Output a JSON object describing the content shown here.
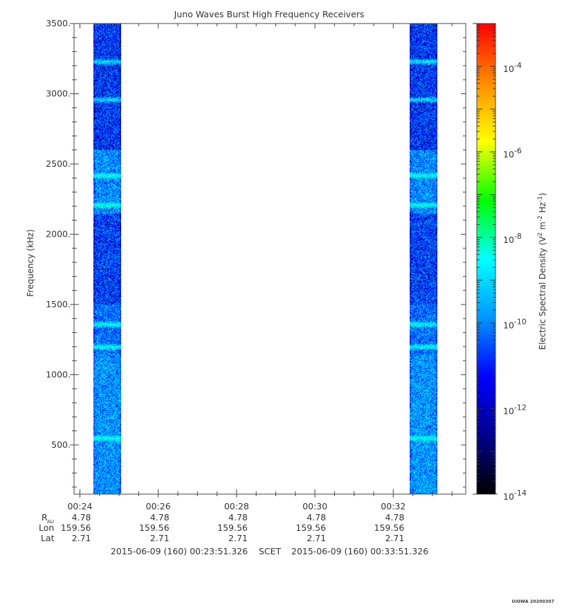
{
  "chart_data": {
    "type": "heatmap",
    "title": "Juno Waves Burst High Frequency Receivers",
    "ylabel": "Frequency (kHz)",
    "ylim": [
      150,
      3500
    ],
    "yticks": [
      {
        "value": 500,
        "label": "500."
      },
      {
        "value": 1000,
        "label": "1000."
      },
      {
        "value": 1500,
        "label": "1500."
      },
      {
        "value": 2000,
        "label": "2000."
      },
      {
        "value": 2500,
        "label": "2500."
      },
      {
        "value": 3000,
        "label": "3000."
      },
      {
        "value": 3500,
        "label": "3500."
      }
    ],
    "xlim_minutes": [
      23.85,
      33.85
    ],
    "xticks": [
      {
        "value": 24,
        "label": "00:24"
      },
      {
        "value": 26,
        "label": "00:26"
      },
      {
        "value": 28,
        "label": "00:28"
      },
      {
        "value": 30,
        "label": "00:30"
      },
      {
        "value": 32,
        "label": "00:32"
      }
    ],
    "ephemeris": {
      "labels": [
        "R",
        "Lon",
        "Lat"
      ],
      "r_subscript": "AU",
      "columns": [
        {
          "r": "4.78",
          "lon": "159.56",
          "lat": "2.71"
        },
        {
          "r": "4.78",
          "lon": "159.56",
          "lat": "2.71"
        },
        {
          "r": "4.78",
          "lon": "159.56",
          "lat": "2.71"
        },
        {
          "r": "4.78",
          "lon": "159.56",
          "lat": "2.71"
        },
        {
          "r": "4.78",
          "lon": "159.56",
          "lat": "2.71"
        }
      ]
    },
    "time_range": {
      "start": "2015-06-09 (160) 00:23:51.326",
      "label": "SCET",
      "end": "2015-06-09 (160) 00:33:51.326"
    },
    "bursts": [
      {
        "start_min": 24.35,
        "end_min": 25.05
      },
      {
        "start_min": 32.42,
        "end_min": 33.12
      }
    ],
    "bright_bands_khz": [
      3230,
      2960,
      2420,
      2210,
      1360,
      1200,
      550
    ],
    "colorbar": {
      "label": "Electric Spectral Density (V² m⁻² Hz⁻¹)",
      "scale": "log",
      "range": [
        1e-14,
        0.001
      ],
      "colors": [
        "#000000",
        "#00008b",
        "#0000ff",
        "#0096ff",
        "#00ffff",
        "#00ff00",
        "#ffff00",
        "#ff8c00",
        "#ff0000"
      ],
      "ticks": [
        {
          "exp": -4,
          "label": "-4"
        },
        {
          "exp": -6,
          "label": "-6"
        },
        {
          "exp": -8,
          "label": "-8"
        },
        {
          "exp": -10,
          "label": "-10"
        },
        {
          "exp": -12,
          "label": "-12"
        },
        {
          "exp": -14,
          "label": "-14"
        }
      ]
    },
    "grid": false
  },
  "footer": "UIOWA 20200307"
}
